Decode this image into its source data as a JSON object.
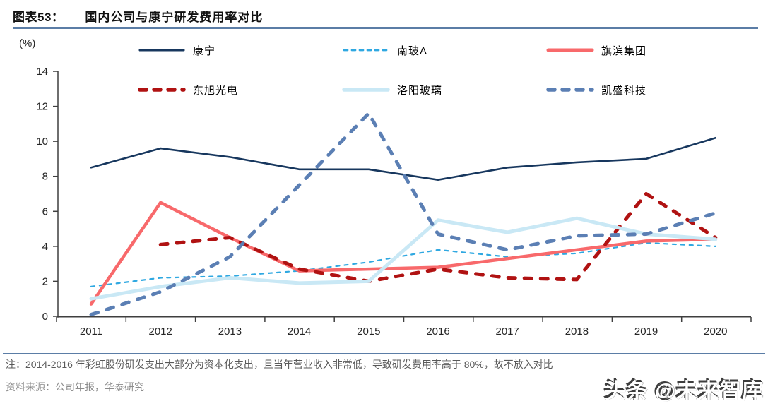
{
  "header": {
    "label": "图表53：",
    "title": "国内公司与康宁研发费用率对比"
  },
  "chart_data": {
    "type": "line",
    "title": "国内公司与康宁研发费用率对比",
    "unit_label": "(%)",
    "x": [
      2011,
      2012,
      2013,
      2014,
      2015,
      2016,
      2017,
      2018,
      2019,
      2020
    ],
    "xlabel": "",
    "ylabel": "(%)",
    "ylim": [
      0,
      14
    ],
    "ytick_step": 2,
    "grid": false,
    "legend_position": "inside-top-two-rows",
    "series": [
      {
        "key": "corning",
        "name": "康宁",
        "color": "#17375e",
        "line": "solid",
        "width": 2.6,
        "dash": null,
        "values": [
          8.5,
          9.6,
          9.1,
          8.4,
          8.4,
          7.8,
          8.5,
          8.8,
          9.0,
          10.2
        ]
      },
      {
        "key": "csg-a",
        "name": "南玻A",
        "color": "#2fa8e1",
        "line": "dashed",
        "width": 2.2,
        "dash": "5 7",
        "values": [
          1.7,
          2.2,
          2.3,
          2.6,
          3.1,
          3.8,
          3.4,
          3.6,
          4.2,
          4.0
        ]
      },
      {
        "key": "kibing",
        "name": "旗滨集团",
        "color": "#f8696b",
        "line": "solid",
        "width": 4.5,
        "dash": null,
        "values": [
          0.7,
          6.5,
          4.5,
          2.6,
          2.7,
          2.8,
          3.3,
          3.8,
          4.3,
          4.4
        ]
      },
      {
        "key": "dongxu",
        "name": "东旭光电",
        "color": "#b01212",
        "line": "dashed",
        "width": 5,
        "dash": "10 13",
        "values": [
          null,
          4.1,
          4.5,
          2.7,
          2.0,
          2.7,
          2.2,
          2.1,
          7.0,
          4.5
        ]
      },
      {
        "key": "luoyang",
        "name": "洛阳玻璃",
        "color": "#c9e8f5",
        "line": "solid",
        "width": 5,
        "dash": null,
        "values": [
          1.0,
          1.7,
          2.2,
          1.9,
          2.0,
          5.5,
          4.8,
          5.6,
          4.7,
          4.4
        ]
      },
      {
        "key": "kaisheng",
        "name": "凯盛科技",
        "color": "#5b7fb4",
        "line": "dashed",
        "width": 5,
        "dash": "10 13",
        "values": [
          0.1,
          1.4,
          3.4,
          7.5,
          11.6,
          4.7,
          3.8,
          4.6,
          4.7,
          5.9
        ]
      }
    ]
  },
  "footer": {
    "note": "注：2014-2016 年彩虹股份研发支出大部分为资本化支出，且当年营业收入非常低，导致研发费用率高于 80%，故不放入对比",
    "source": "资料来源：公司年报，华泰研究"
  },
  "watermark": "头条 @未来智库",
  "colors": {
    "accent_rule": "#5b7da6",
    "axis": "#3f3f3f",
    "note_text": "#595959",
    "source_text": "#8c8c8c"
  }
}
